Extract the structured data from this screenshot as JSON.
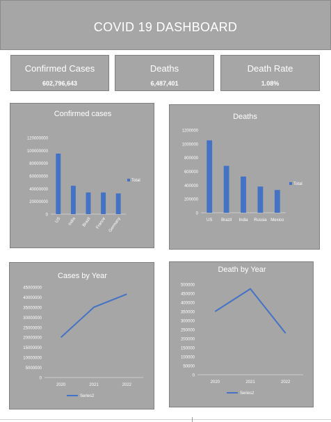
{
  "header": {
    "title": "COVID 19 DASHBOARD"
  },
  "kpis": [
    {
      "label": "Confirmed Cases",
      "value": "602,796,643"
    },
    {
      "label": "Deaths",
      "value": "6,487,401"
    },
    {
      "label": "Death Rate",
      "value": "1.08%"
    }
  ],
  "colors": {
    "series": "#4472c4",
    "panel": "#a6a6a6",
    "text": "#ffffff"
  },
  "chart_data": [
    {
      "type": "bar",
      "title": "Confirmed cases",
      "categories": [
        "US",
        "India",
        "Brazil",
        "France",
        "Germany"
      ],
      "series": [
        {
          "name": "Total",
          "values": [
            95000000,
            44500000,
            34000000,
            34000000,
            32500000
          ]
        }
      ],
      "yticks": [
        "0",
        "20000000",
        "40000000",
        "60000000",
        "80000000",
        "100000000",
        "120000000"
      ],
      "ylim": [
        0,
        120000000
      ],
      "legend": "right",
      "grid": false
    },
    {
      "type": "bar",
      "title": "Deaths",
      "categories": [
        "US",
        "Brazil",
        "India",
        "Russia",
        "Mexico"
      ],
      "series": [
        {
          "name": "Total",
          "values": [
            1050000,
            680000,
            525000,
            380000,
            330000
          ]
        }
      ],
      "yticks": [
        "0",
        "200000",
        "400000",
        "600000",
        "800000",
        "1000000",
        "1200000"
      ],
      "ylim": [
        0,
        1200000
      ],
      "legend": "right",
      "grid": false
    },
    {
      "type": "line",
      "title": "Cases by Year",
      "x": [
        "2020",
        "2021",
        "2022"
      ],
      "series": [
        {
          "name": "Series2",
          "values": [
            20000000,
            35000000,
            41500000
          ]
        }
      ],
      "yticks": [
        "0",
        "5000000",
        "10000000",
        "15000000",
        "20000000",
        "25000000",
        "30000000",
        "35000000",
        "40000000",
        "45000000"
      ],
      "ylim": [
        0,
        45000000
      ],
      "legend": "bottom",
      "grid": false
    },
    {
      "type": "line",
      "title": "Death by Year",
      "x": [
        "2020",
        "2021",
        "2022"
      ],
      "series": [
        {
          "name": "Series2",
          "values": [
            350000,
            475000,
            230000
          ]
        }
      ],
      "yticks": [
        "0",
        "50000",
        "100000",
        "150000",
        "200000",
        "250000",
        "300000",
        "350000",
        "400000",
        "450000",
        "500000"
      ],
      "ylim": [
        0,
        500000
      ],
      "legend": "bottom",
      "grid": false
    }
  ]
}
